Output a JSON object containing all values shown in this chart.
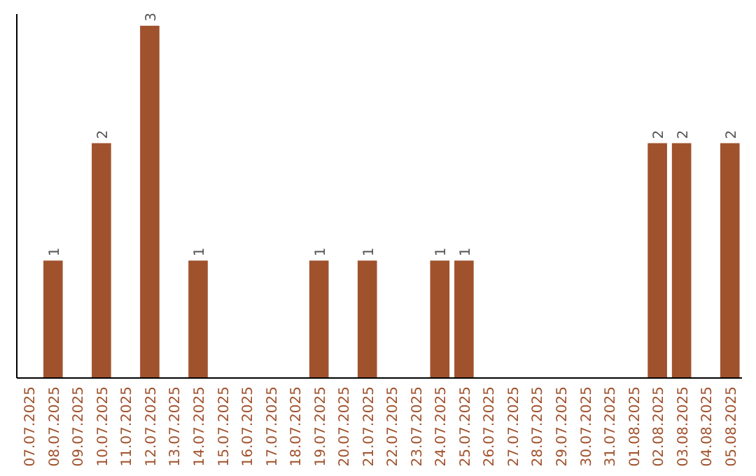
{
  "chart_data": {
    "type": "bar",
    "categories": [
      "07.07.2025",
      "08.07.2025",
      "09.07.2025",
      "10.07.2025",
      "11.07.2025",
      "12.07.2025",
      "13.07.2025",
      "14.07.2025",
      "15.07.2025",
      "16.07.2025",
      "17.07.2025",
      "18.07.2025",
      "19.07.2025",
      "20.07.2025",
      "21.07.2025",
      "22.07.2025",
      "23.07.2025",
      "24.07.2025",
      "25.07.2025",
      "26.07.2025",
      "27.07.2025",
      "28.07.2025",
      "29.07.2025",
      "30.07.2025",
      "31.07.2025",
      "01.08.2025",
      "02.08.2025",
      "03.08.2025",
      "04.08.2025",
      "05.08.2025"
    ],
    "values": [
      0,
      1,
      0,
      2,
      0,
      3,
      0,
      1,
      0,
      0,
      0,
      0,
      1,
      0,
      1,
      0,
      0,
      1,
      1,
      0,
      0,
      0,
      0,
      0,
      0,
      0,
      2,
      2,
      0,
      2
    ],
    "value_labels": [
      null,
      "1",
      null,
      "2",
      null,
      "3",
      null,
      "1",
      null,
      null,
      null,
      null,
      "1",
      null,
      "1",
      null,
      null,
      "1",
      "1",
      null,
      null,
      null,
      null,
      null,
      null,
      null,
      "2",
      "2",
      null,
      "2"
    ],
    "color": "#a0522d",
    "ylim": [
      0,
      3.1
    ],
    "tick_labels": "x"
  }
}
